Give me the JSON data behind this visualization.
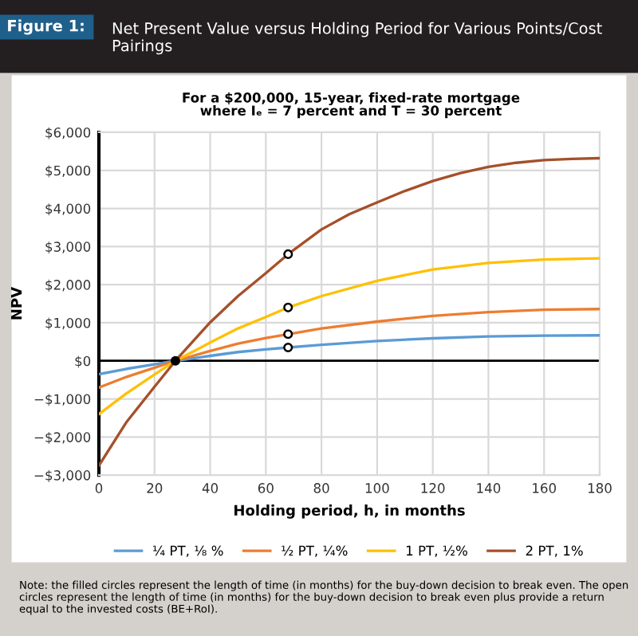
{
  "chart_data": {
    "type": "line",
    "title": "Net Present Value versus Holding Period for Various Points/Cost Pairings",
    "subtitle": "For a $200,000, 15-year, fixed-rate mortgage\nwhere Iₑ = 7 percent and T = 30 percent",
    "xlabel": "Holding period, h, in months",
    "ylabel": "NPV",
    "annotations": [
      "Figure 1:",
      "Note: the filled circles represent the length of time (in months) for the buy-down decision to break even. The open circles represent the length of time (in months) for the buy-down decision to break even plus provide a return equal to the invested costs (BE+RoI)."
    ],
    "series": [
      {
        "name": "¼ PT, ⅛ %",
        "color": "#5b9bd5",
        "x": [
          0,
          10,
          20,
          27.5,
          40,
          50,
          60,
          68,
          80,
          100,
          120,
          140,
          160,
          180
        ],
        "values": [
          -350,
          -210,
          -90,
          0,
          130,
          230,
          300,
          350,
          420,
          520,
          590,
          640,
          660,
          670
        ]
      },
      {
        "name": "½ PT, ¼%",
        "color": "#ed7d31",
        "x": [
          0,
          10,
          20,
          27.5,
          40,
          50,
          60,
          68,
          80,
          100,
          120,
          140,
          160,
          180
        ],
        "values": [
          -700,
          -420,
          -180,
          0,
          260,
          450,
          600,
          700,
          850,
          1030,
          1180,
          1280,
          1340,
          1360
        ]
      },
      {
        "name": "1 PT, ½%",
        "color": "#ffc000",
        "x": [
          0,
          10,
          20,
          27.5,
          40,
          50,
          60,
          68,
          80,
          100,
          120,
          140,
          160,
          180
        ],
        "values": [
          -1400,
          -850,
          -360,
          0,
          480,
          850,
          1150,
          1400,
          1700,
          2100,
          2400,
          2570,
          2660,
          2690
        ]
      },
      {
        "name": "2 PT, 1%",
        "color": "#a5502a",
        "x": [
          0,
          10,
          20,
          27.5,
          40,
          50,
          60,
          68,
          80,
          90,
          100,
          110,
          120,
          130,
          140,
          150,
          160,
          170,
          180
        ],
        "values": [
          -2750,
          -1600,
          -680,
          0,
          1010,
          1700,
          2300,
          2800,
          3450,
          3850,
          4160,
          4460,
          4720,
          4930,
          5090,
          5200,
          5270,
          5300,
          5320
        ]
      },
      {
        "type": "scatter",
        "marker": "circle",
        "color": "#000000",
        "x": [
          27.5
        ],
        "values": [
          0
        ]
      },
      {
        "type": "scatter",
        "marker": "circle",
        "color": "#ffffff",
        "x": [
          68,
          68,
          68,
          68
        ],
        "values": [
          350,
          700,
          1400,
          2800
        ]
      }
    ],
    "xlim": [
      0,
      180
    ],
    "xticks": [
      0,
      20,
      40,
      60,
      80,
      100,
      120,
      140,
      160,
      180
    ],
    "ylim": [
      -3000,
      6000
    ],
    "yticks": [
      {
        "value": -3000,
        "label": "−$3,000"
      },
      {
        "value": -2000,
        "label": "−$2,000"
      },
      {
        "value": -1000,
        "label": "−$1,000"
      },
      {
        "value": 0,
        "label": "$0"
      },
      {
        "value": 1000,
        "label": "$1,000"
      },
      {
        "value": 2000,
        "label": "$2,000"
      },
      {
        "value": 3000,
        "label": "$3,000"
      },
      {
        "value": 4000,
        "label": "$4,000"
      },
      {
        "value": 5000,
        "label": "$5,000"
      },
      {
        "value": 6000,
        "label": "$6,000"
      }
    ],
    "ref_lines": [
      {
        "axis": "y",
        "value": 0,
        "color": "#000000"
      }
    ],
    "grid": true,
    "legend": "bottom"
  }
}
